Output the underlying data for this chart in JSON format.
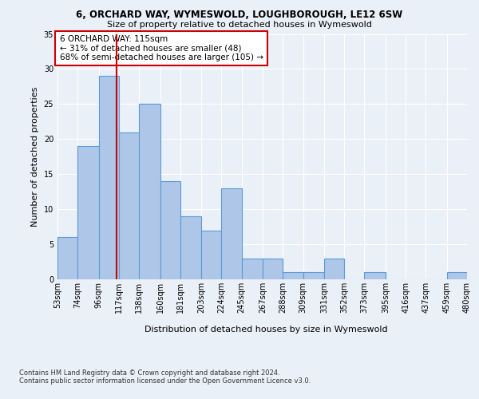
{
  "title_line1": "6, ORCHARD WAY, WYMESWOLD, LOUGHBOROUGH, LE12 6SW",
  "title_line2": "Size of property relative to detached houses in Wymeswold",
  "xlabel": "Distribution of detached houses by size in Wymeswold",
  "ylabel": "Number of detached properties",
  "footer_line1": "Contains HM Land Registry data © Crown copyright and database right 2024.",
  "footer_line2": "Contains public sector information licensed under the Open Government Licence v3.0.",
  "annotation_line1": "6 ORCHARD WAY: 115sqm",
  "annotation_line2": "← 31% of detached houses are smaller (48)",
  "annotation_line3": "68% of semi-detached houses are larger (105) →",
  "property_size": 115,
  "bin_edges": [
    53,
    74,
    96,
    117,
    138,
    160,
    181,
    203,
    224,
    245,
    267,
    288,
    309,
    331,
    352,
    373,
    395,
    416,
    437,
    459,
    480
  ],
  "bar_heights": [
    6,
    19,
    29,
    21,
    25,
    14,
    9,
    7,
    13,
    3,
    3,
    1,
    1,
    3,
    0,
    1,
    0,
    0,
    0,
    1
  ],
  "bar_color": "#aec6e8",
  "bar_edge_color": "#5b9bd5",
  "vline_color": "#cc0000",
  "vline_x": 115,
  "ylim": [
    0,
    35
  ],
  "yticks": [
    0,
    5,
    10,
    15,
    20,
    25,
    30,
    35
  ],
  "bg_color": "#eaf0f8",
  "plot_bg_color": "#eaf0f8",
  "grid_color": "#ffffff",
  "annotation_box_color": "#ffffff",
  "annotation_box_edge": "#cc0000",
  "title1_fontsize": 8.5,
  "title2_fontsize": 8.0,
  "ylabel_fontsize": 8.0,
  "xlabel_fontsize": 8.0,
  "tick_fontsize": 7.0,
  "annotation_fontsize": 7.5,
  "footer_fontsize": 6.0
}
